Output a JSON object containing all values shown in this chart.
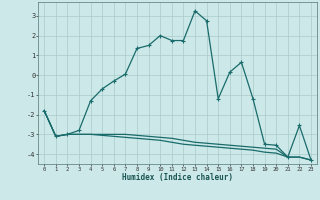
{
  "xlabel": "Humidex (Indice chaleur)",
  "background_color": "#cce8e8",
  "grid_color": "#aacccc",
  "line_color": "#1a6b6b",
  "series1": {
    "x": [
      0,
      1,
      2,
      3,
      4,
      5,
      6,
      7,
      8,
      9,
      10,
      11,
      12,
      13,
      14,
      15,
      16,
      17,
      18,
      19,
      20,
      21,
      22,
      23
    ],
    "y": [
      -1.8,
      -3.1,
      -3.0,
      -2.8,
      -1.3,
      -0.7,
      -0.3,
      0.05,
      1.35,
      1.5,
      2.0,
      1.75,
      1.75,
      3.25,
      2.75,
      -1.2,
      0.15,
      0.65,
      -1.2,
      -3.5,
      -3.55,
      -4.15,
      -2.55,
      -4.3
    ]
  },
  "series2": {
    "x": [
      0,
      1,
      2,
      3,
      4,
      5,
      6,
      7,
      8,
      9,
      10,
      11,
      12,
      13,
      14,
      15,
      16,
      17,
      18,
      19,
      20,
      21,
      22,
      23
    ],
    "y": [
      -1.8,
      -3.1,
      -3.0,
      -3.0,
      -3.0,
      -3.0,
      -3.0,
      -3.0,
      -3.05,
      -3.1,
      -3.15,
      -3.2,
      -3.3,
      -3.4,
      -3.45,
      -3.5,
      -3.55,
      -3.6,
      -3.65,
      -3.7,
      -3.75,
      -4.15,
      -4.15,
      -4.3
    ]
  },
  "series3": {
    "x": [
      0,
      1,
      2,
      3,
      4,
      5,
      6,
      7,
      8,
      9,
      10,
      11,
      12,
      13,
      14,
      15,
      16,
      17,
      18,
      19,
      20,
      21,
      22,
      23
    ],
    "y": [
      -1.8,
      -3.1,
      -3.0,
      -3.0,
      -3.0,
      -3.05,
      -3.1,
      -3.15,
      -3.2,
      -3.25,
      -3.3,
      -3.4,
      -3.5,
      -3.55,
      -3.6,
      -3.65,
      -3.7,
      -3.75,
      -3.8,
      -3.9,
      -3.95,
      -4.15,
      -4.15,
      -4.3
    ]
  },
  "xlim": [
    -0.5,
    23.5
  ],
  "ylim": [
    -4.5,
    3.7
  ],
  "yticks": [
    -4,
    -3,
    -2,
    -1,
    0,
    1,
    2,
    3
  ],
  "xticks": [
    0,
    1,
    2,
    3,
    4,
    5,
    6,
    7,
    8,
    9,
    10,
    11,
    12,
    13,
    14,
    15,
    16,
    17,
    18,
    19,
    20,
    21,
    22,
    23
  ]
}
